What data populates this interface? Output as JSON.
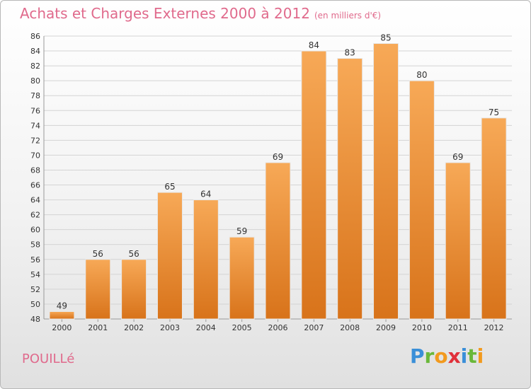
{
  "header": {
    "title": "Achats et Charges Externes 2000 à 2012",
    "subtitle": "(en milliers d'€)"
  },
  "footer": {
    "commune": "POUILLé",
    "brand_letters": [
      "P",
      "r",
      "o",
      "x",
      "i",
      "t",
      "i"
    ]
  },
  "colors": {
    "bar_top": "#f7a957",
    "bar_bottom": "#d8731a",
    "title": "#e06a8c"
  },
  "chart_data": {
    "type": "bar",
    "categories": [
      "2000",
      "2001",
      "2002",
      "2003",
      "2004",
      "2005",
      "2006",
      "2007",
      "2008",
      "2009",
      "2010",
      "2011",
      "2012"
    ],
    "values": [
      49,
      56,
      56,
      65,
      64,
      59,
      69,
      84,
      83,
      85,
      80,
      69,
      75
    ],
    "title": "Achats et Charges Externes 2000 à 2012",
    "xlabel": "",
    "ylabel": "",
    "ylim": [
      48,
      86
    ],
    "yticks": [
      48,
      50,
      52,
      54,
      56,
      58,
      60,
      62,
      64,
      66,
      68,
      70,
      72,
      74,
      76,
      78,
      80,
      82,
      84,
      86
    ],
    "grid": "horizontal"
  }
}
